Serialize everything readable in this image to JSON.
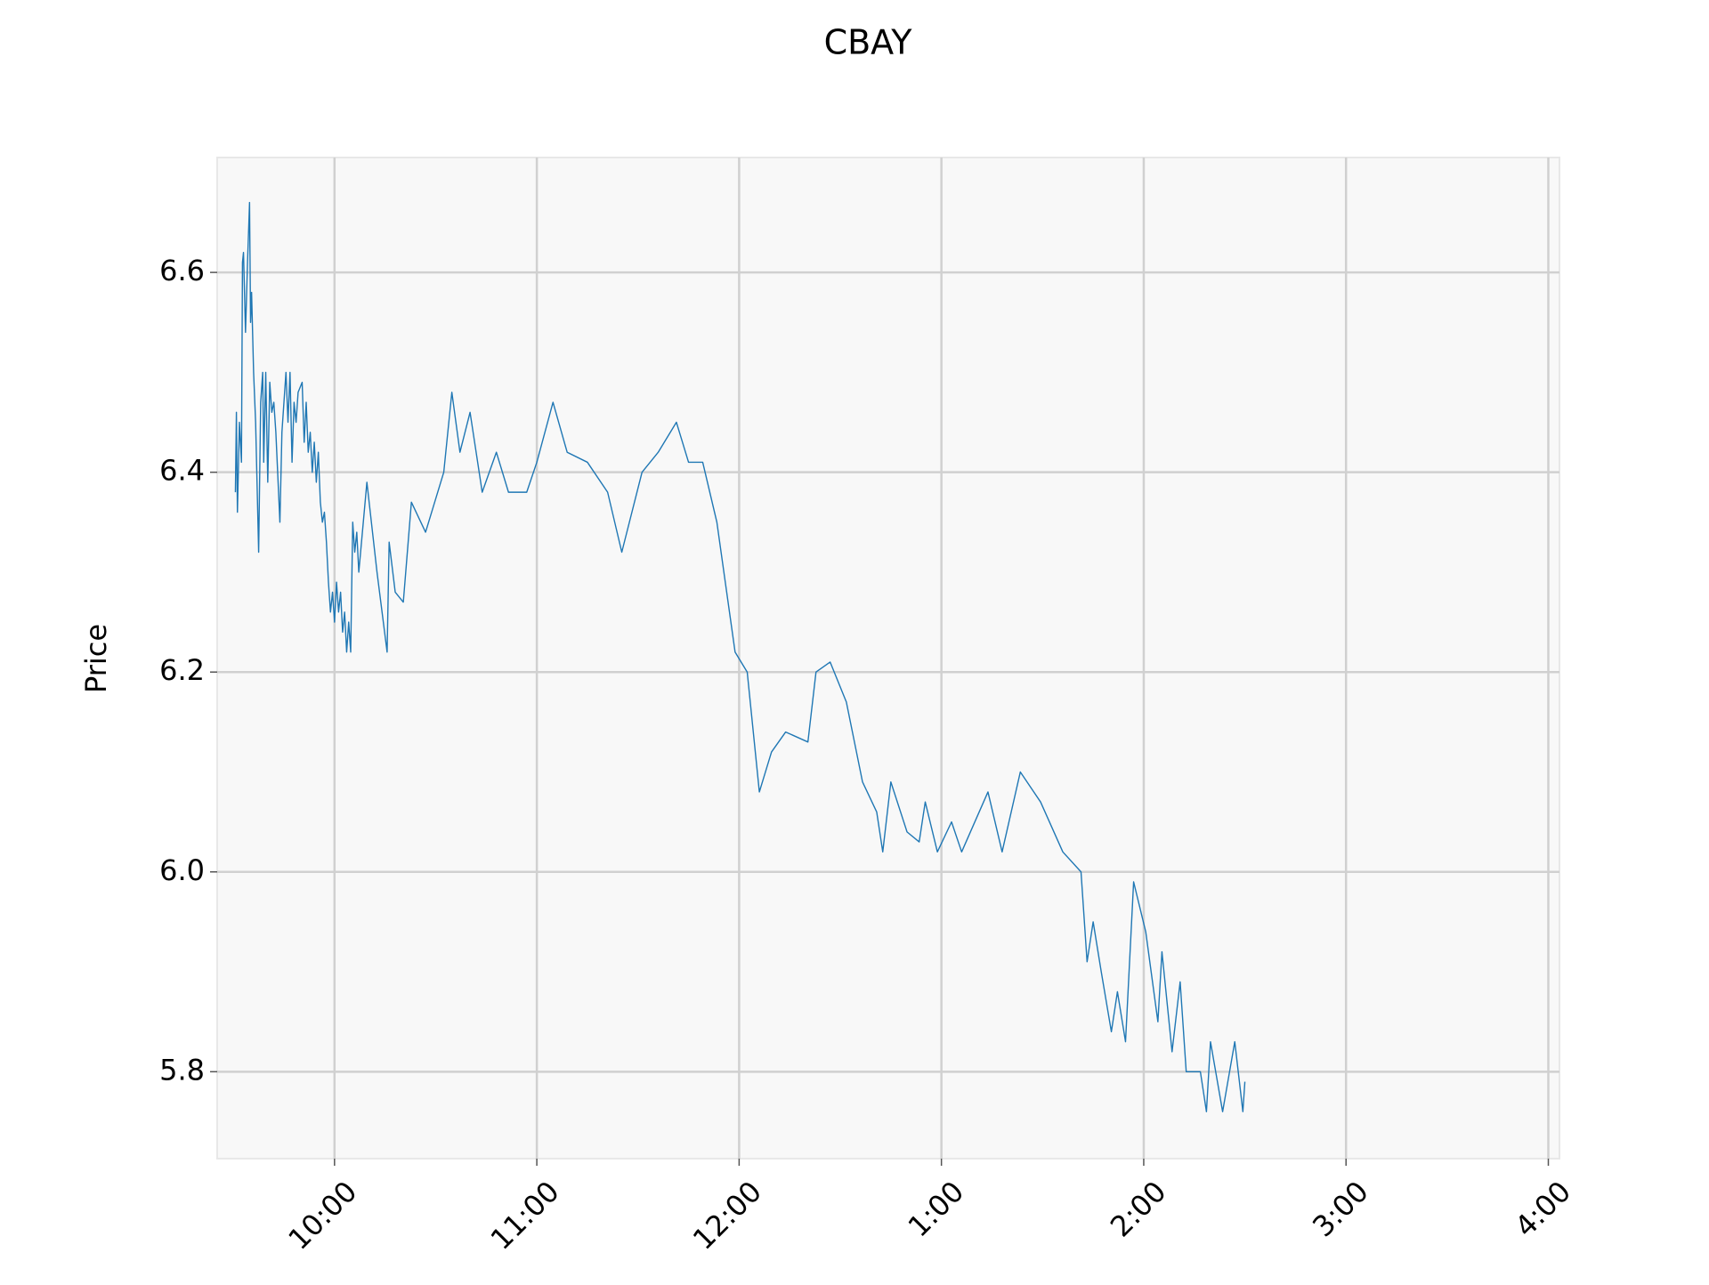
{
  "chart_data": {
    "type": "line",
    "title": "CBAY",
    "y_label": "Price",
    "x": [
      9.51,
      9.515,
      9.52,
      9.53,
      9.54,
      9.545,
      9.55,
      9.56,
      9.57,
      9.58,
      9.585,
      9.59,
      9.6,
      9.61,
      9.625,
      9.635,
      9.645,
      9.65,
      9.66,
      9.67,
      9.68,
      9.69,
      9.7,
      9.71,
      9.73,
      9.74,
      9.75,
      9.76,
      9.77,
      9.78,
      9.79,
      9.8,
      9.81,
      9.82,
      9.84,
      9.85,
      9.86,
      9.87,
      9.88,
      9.89,
      9.9,
      9.91,
      9.92,
      9.93,
      9.94,
      9.95,
      9.96,
      9.97,
      9.98,
      9.99,
      10.0,
      10.01,
      10.02,
      10.03,
      10.04,
      10.05,
      10.06,
      10.07,
      10.08,
      10.09,
      10.1,
      10.11,
      10.12,
      10.16,
      10.21,
      10.26,
      10.27,
      10.3,
      10.34,
      10.38,
      10.45,
      10.54,
      10.58,
      10.62,
      10.67,
      10.73,
      10.8,
      10.86,
      10.95,
      11.0,
      11.08,
      11.15,
      11.25,
      11.35,
      11.42,
      11.52,
      11.6,
      11.69,
      11.75,
      11.82,
      11.89,
      11.98,
      12.04,
      12.1,
      12.16,
      12.23,
      12.34,
      12.38,
      12.45,
      12.53,
      12.61,
      12.68,
      12.71,
      12.75,
      12.83,
      12.89,
      12.92,
      12.98,
      13.05,
      13.1,
      13.23,
      13.3,
      13.39,
      13.49,
      13.6,
      13.69,
      13.72,
      13.75,
      13.79,
      13.84,
      13.87,
      13.91,
      13.95,
      14.01,
      14.07,
      14.09,
      14.14,
      14.18,
      14.21,
      14.28,
      14.31,
      14.33,
      14.39,
      14.45,
      14.49,
      14.5
    ],
    "series": [
      {
        "name": "Price",
        "color": "#1f77b4",
        "values": [
          6.38,
          6.46,
          6.36,
          6.45,
          6.41,
          6.61,
          6.62,
          6.54,
          6.61,
          6.67,
          6.55,
          6.58,
          6.5,
          6.45,
          6.32,
          6.47,
          6.5,
          6.41,
          6.5,
          6.39,
          6.49,
          6.46,
          6.47,
          6.44,
          6.35,
          6.44,
          6.47,
          6.5,
          6.45,
          6.5,
          6.41,
          6.47,
          6.45,
          6.48,
          6.49,
          6.43,
          6.47,
          6.42,
          6.44,
          6.4,
          6.43,
          6.39,
          6.42,
          6.37,
          6.35,
          6.36,
          6.33,
          6.29,
          6.26,
          6.28,
          6.25,
          6.29,
          6.26,
          6.28,
          6.24,
          6.26,
          6.22,
          6.25,
          6.22,
          6.35,
          6.32,
          6.34,
          6.3,
          6.39,
          6.3,
          6.22,
          6.33,
          6.28,
          6.27,
          6.37,
          6.34,
          6.4,
          6.48,
          6.42,
          6.46,
          6.38,
          6.42,
          6.38,
          6.38,
          6.41,
          6.47,
          6.42,
          6.41,
          6.38,
          6.32,
          6.4,
          6.42,
          6.45,
          6.41,
          6.41,
          6.35,
          6.22,
          6.2,
          6.08,
          6.12,
          6.14,
          6.13,
          6.2,
          6.21,
          6.17,
          6.09,
          6.06,
          6.02,
          6.09,
          6.04,
          6.03,
          6.07,
          6.02,
          6.05,
          6.02,
          6.08,
          6.02,
          6.1,
          6.07,
          6.02,
          6.0,
          5.91,
          5.95,
          5.9,
          5.84,
          5.88,
          5.83,
          5.99,
          5.94,
          5.85,
          5.92,
          5.82,
          5.89,
          5.8,
          5.8,
          5.76,
          5.83,
          5.76,
          5.83,
          5.76,
          5.79
        ]
      }
    ],
    "xlim": [
      9.42,
      16.055
    ],
    "xticks": [
      {
        "value": 10,
        "label": "10:00"
      },
      {
        "value": 11,
        "label": "11:00"
      },
      {
        "value": 12,
        "label": "12:00"
      },
      {
        "value": 13,
        "label": "1:00"
      },
      {
        "value": 14,
        "label": "2:00"
      },
      {
        "value": 15,
        "label": "3:00"
      },
      {
        "value": 16,
        "label": "4:00"
      }
    ],
    "ylim": [
      5.713,
      6.715
    ],
    "yticks": [
      {
        "value": 5.8,
        "label": "5.8"
      },
      {
        "value": 6,
        "label": "6.0"
      },
      {
        "value": 6.2,
        "label": "6.2"
      },
      {
        "value": 6.4,
        "label": "6.4"
      },
      {
        "value": 6.6,
        "label": "6.6"
      }
    ],
    "grid": true
  }
}
